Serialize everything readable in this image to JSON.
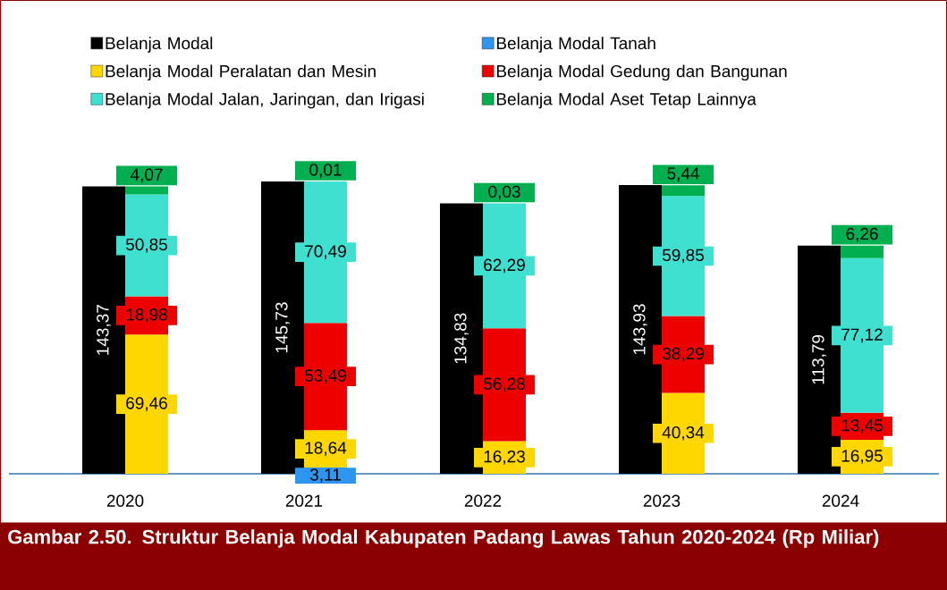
{
  "chart_data": [
    {
      "type": "bar",
      "legend": "top",
      "title": "Gambar 2.50.  Struktur Belanja Modal Kabupaten Padang Lawas Tahun 2020-2024 (Rp Miliar)",
      "categories": [
        "2020",
        "2021",
        "2022",
        "2023",
        "2024"
      ],
      "series": [
        {
          "name": "Belanja Modal",
          "color": "#000000",
          "values": [
            143.37,
            145.73,
            134.83,
            143.93,
            113.79
          ],
          "value_labels": [
            "143,37",
            "145,73",
            "134,83",
            "143,93",
            "113,79"
          ]
        }
      ]
    },
    {
      "type": "bar",
      "stacked": true,
      "legend": "top",
      "tick_labels": false,
      "categories": [
        "2020",
        "2021",
        "2022",
        "2023",
        "2024"
      ],
      "series": [
        {
          "name": "Belanja Modal Tanah",
          "color": "#2e96f0",
          "values": [
            null,
            3.11,
            null,
            null,
            null
          ],
          "value_labels": [
            null,
            "3,11",
            null,
            null,
            null
          ]
        },
        {
          "name": "Belanja Modal Peralatan dan Mesin",
          "color": "#ffd700",
          "values": [
            69.46,
            18.64,
            16.23,
            40.34,
            16.95
          ],
          "value_labels": [
            "69,46",
            "18,64",
            "16,23",
            "40,34",
            "16,95"
          ]
        },
        {
          "name": "Belanja Modal Gedung dan Bangunan",
          "color": "#ee0000",
          "values": [
            18.98,
            53.49,
            56.28,
            38.29,
            13.45
          ],
          "value_labels": [
            "18,98",
            "53,49",
            "56,28",
            "38,29",
            "13,45"
          ]
        },
        {
          "name": "Belanja Modal Jalan, Jaringan, dan Irigasi",
          "color": "#40e0d0",
          "values": [
            50.85,
            70.49,
            62.29,
            59.85,
            77.12
          ],
          "value_labels": [
            "50,85",
            "70,49",
            "62,29",
            "59,85",
            "77,12"
          ]
        },
        {
          "name": "Belanja Modal Aset Tetap Lainnya",
          "color": "#00b050",
          "values": [
            4.07,
            0.01,
            0.03,
            5.44,
            6.26
          ],
          "value_labels": [
            "4,07",
            "0,01",
            "0,03",
            "5,44",
            "6,26"
          ]
        }
      ]
    }
  ]
}
